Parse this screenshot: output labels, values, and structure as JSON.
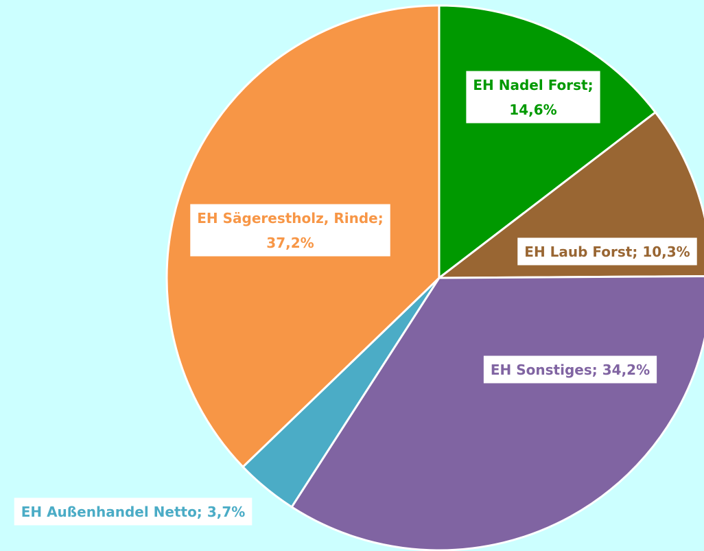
{
  "chart_data": {
    "type": "pie",
    "categories": [
      "EH Nadel Forst;",
      "EH Laub Forst;",
      "EH Sonstiges;",
      "EH Außenhandel Netto;",
      "EH Sägerestholz, Rinde;"
    ],
    "values": [
      14.6,
      10.3,
      34.2,
      3.7,
      37.2
    ],
    "value_labels": [
      "14,6%",
      "10,3%",
      "34,2%",
      "3,7%",
      "37,2%"
    ],
    "colors": [
      "#009900",
      "#996633",
      "#8064a2",
      "#4bacc6",
      "#f79646"
    ]
  }
}
